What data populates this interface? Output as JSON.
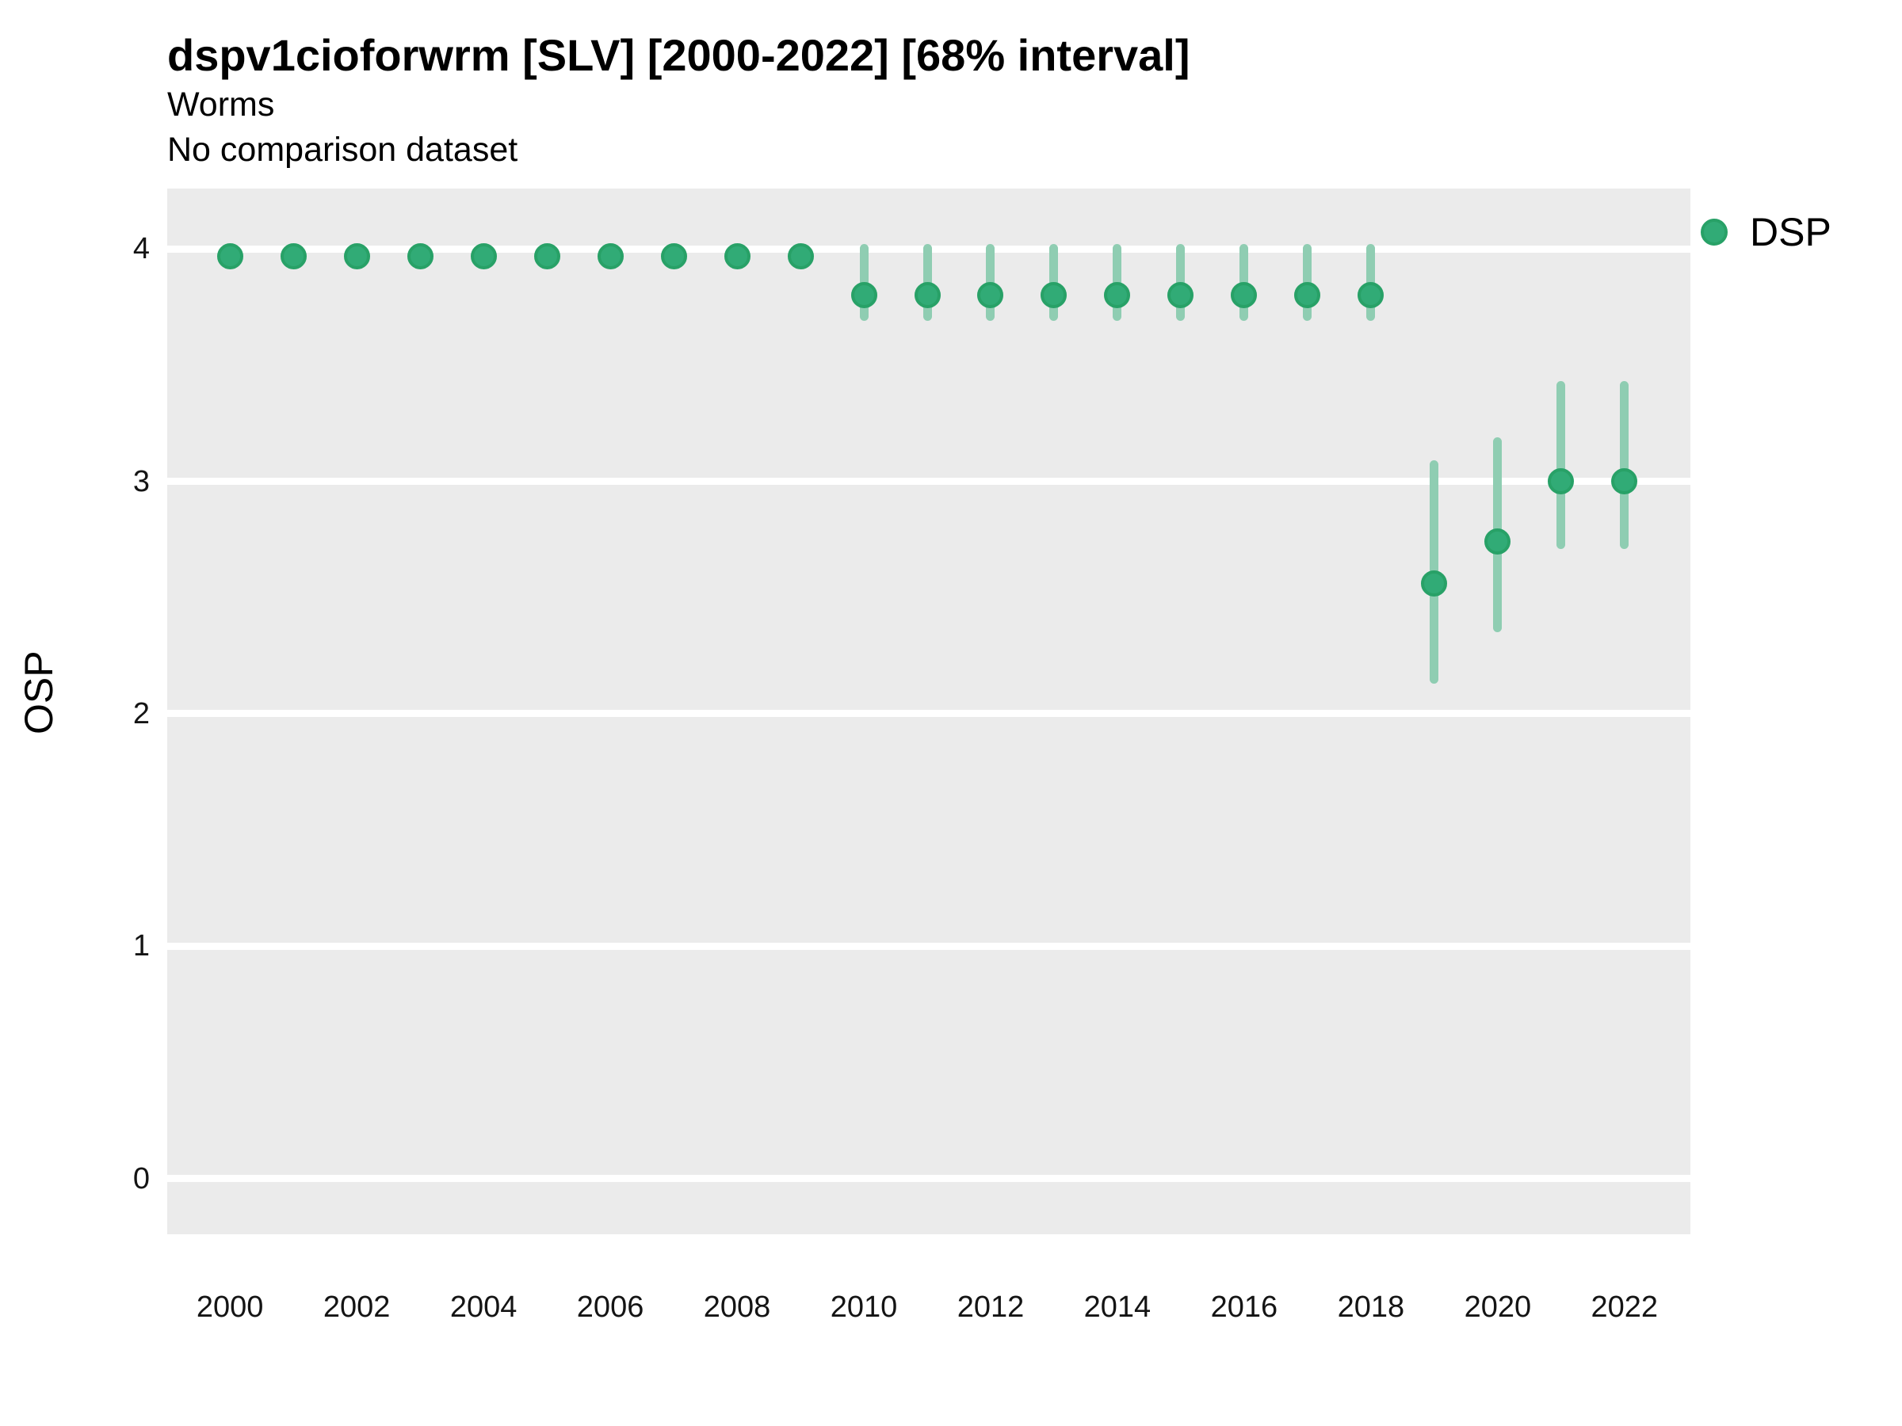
{
  "header": {
    "title": "dspv1cioforwrm [SLV] [2000-2022] [68% interval]",
    "subtitle_line1": "Worms",
    "subtitle_line2": "No comparison dataset"
  },
  "legend": {
    "items": [
      {
        "label": "DSP",
        "marker": "circle-icon"
      }
    ]
  },
  "axes": {
    "y_label": "OSP",
    "y_ticks": [
      "4",
      "3",
      "2",
      "1",
      "0"
    ],
    "x_ticks": [
      "2000",
      "2002",
      "2004",
      "2006",
      "2008",
      "2010",
      "2012",
      "2014",
      "2016",
      "2018",
      "2020",
      "2022"
    ]
  },
  "colors": {
    "point_fill": "#31AB76",
    "point_ring": "#28A167",
    "interval": "#8FCDB2",
    "panel_bg": "#EBEBEB",
    "grid": "#FFFFFF",
    "text": "#000000"
  },
  "chart_data": {
    "type": "scatter",
    "title": "dspv1cioforwrm [SLV] [2000-2022] [68% interval]",
    "subtitle": [
      "Worms",
      "No comparison dataset"
    ],
    "xlabel": "",
    "ylabel": "OSP",
    "legend_entries": [
      "DSP"
    ],
    "legend_position": "right-top",
    "grid": "horizontal-major-only",
    "interval_level": "68%",
    "xlim": [
      1999.01,
      2023.04
    ],
    "ylim": [
      -0.24,
      4.26
    ],
    "y_tick_values": [
      4,
      3,
      2,
      1,
      0
    ],
    "x_tick_values": [
      2000,
      2002,
      2004,
      2006,
      2008,
      2010,
      2012,
      2014,
      2016,
      2018,
      2020,
      2022
    ],
    "series": [
      {
        "name": "DSP",
        "points": [
          {
            "year": 2000,
            "value": 3.97,
            "lo": 3.97,
            "hi": 3.97
          },
          {
            "year": 2001,
            "value": 3.97,
            "lo": 3.97,
            "hi": 3.97
          },
          {
            "year": 2002,
            "value": 3.97,
            "lo": 3.97,
            "hi": 3.97
          },
          {
            "year": 2003,
            "value": 3.97,
            "lo": 3.97,
            "hi": 3.97
          },
          {
            "year": 2004,
            "value": 3.97,
            "lo": 3.97,
            "hi": 3.97
          },
          {
            "year": 2005,
            "value": 3.97,
            "lo": 3.97,
            "hi": 3.97
          },
          {
            "year": 2006,
            "value": 3.97,
            "lo": 3.97,
            "hi": 3.97
          },
          {
            "year": 2007,
            "value": 3.97,
            "lo": 3.97,
            "hi": 3.97
          },
          {
            "year": 2008,
            "value": 3.97,
            "lo": 3.97,
            "hi": 3.97
          },
          {
            "year": 2009,
            "value": 3.97,
            "lo": 3.97,
            "hi": 3.97
          },
          {
            "year": 2010,
            "value": 3.8,
            "lo": 3.69,
            "hi": 4.02
          },
          {
            "year": 2011,
            "value": 3.8,
            "lo": 3.69,
            "hi": 4.02
          },
          {
            "year": 2012,
            "value": 3.8,
            "lo": 3.69,
            "hi": 4.02
          },
          {
            "year": 2013,
            "value": 3.8,
            "lo": 3.69,
            "hi": 4.02
          },
          {
            "year": 2014,
            "value": 3.8,
            "lo": 3.69,
            "hi": 4.02
          },
          {
            "year": 2015,
            "value": 3.8,
            "lo": 3.69,
            "hi": 4.02
          },
          {
            "year": 2016,
            "value": 3.8,
            "lo": 3.69,
            "hi": 4.02
          },
          {
            "year": 2017,
            "value": 3.8,
            "lo": 3.69,
            "hi": 4.02
          },
          {
            "year": 2018,
            "value": 3.8,
            "lo": 3.69,
            "hi": 4.02
          },
          {
            "year": 2019,
            "value": 2.56,
            "lo": 2.13,
            "hi": 3.09
          },
          {
            "year": 2020,
            "value": 2.74,
            "lo": 2.35,
            "hi": 3.19
          },
          {
            "year": 2021,
            "value": 3.0,
            "lo": 2.71,
            "hi": 3.43
          },
          {
            "year": 2022,
            "value": 3.0,
            "lo": 2.71,
            "hi": 3.43
          }
        ]
      }
    ]
  }
}
